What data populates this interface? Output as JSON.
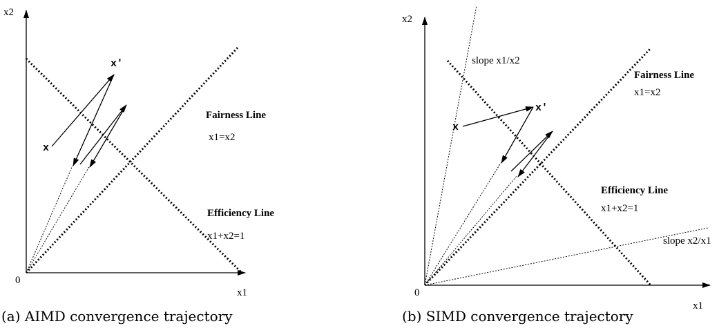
{
  "panels": [
    {
      "axis_y": "x2",
      "axis_x": "x1",
      "origin": "0",
      "point_x": "x",
      "point_x_prime": "x'",
      "fairness_title": "Fairness Line",
      "fairness_eq": "x1=x2",
      "efficiency_title": "Efficiency Line",
      "efficiency_eq": "x1+x2=1",
      "caption": "(a) AIMD convergence trajectory"
    },
    {
      "axis_y": "x2",
      "axis_x": "x1",
      "origin": "0",
      "point_x": "x",
      "point_x_prime": "x'",
      "fairness_title": "Fairness Line",
      "fairness_eq": "x1=x2",
      "efficiency_title": "Efficiency Line",
      "efficiency_eq": "x1+x2=1",
      "slope_upper": "slope x1/x2",
      "slope_lower": "slope x2/x1",
      "caption": "(b) SIMD convergence trajectory"
    }
  ]
}
